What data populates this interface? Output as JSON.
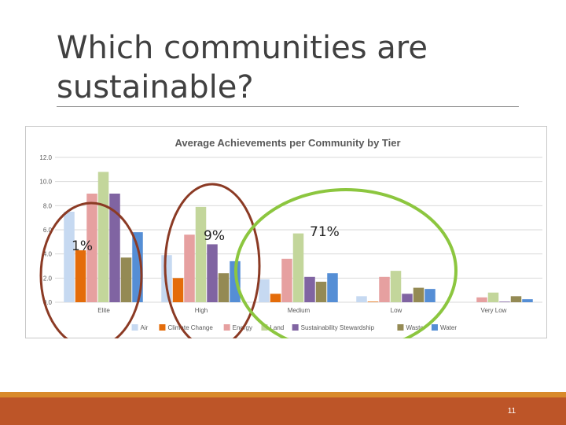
{
  "slide": {
    "title_line1": "Which communities are",
    "title_line2": "sustainable?",
    "page_number": "11"
  },
  "annotations": {
    "elite_pct": "1%",
    "high_pct": "9%",
    "medium_low_pct": "71%",
    "circle_colors": {
      "elite": "#8b3a24",
      "high": "#8b3a24",
      "medium_low": "#8cc63f"
    }
  },
  "chart_data": {
    "type": "bar",
    "title": "Average Achievements per Community by Tier",
    "categories": [
      "Elite",
      "High",
      "Medium",
      "Low",
      "Very Low"
    ],
    "yticks": [
      "0.0",
      "2.0",
      "4.0",
      "6.0",
      "8.0",
      "10.0",
      "12.0"
    ],
    "ylim": [
      0,
      12
    ],
    "grid": true,
    "legend_position": "bottom",
    "series": [
      {
        "name": "Air",
        "color": "#c6d9f1",
        "values": [
          7.5,
          3.9,
          1.9,
          0.5,
          0.0
        ]
      },
      {
        "name": "Climate Change",
        "color": "#e46c0a",
        "values": [
          4.3,
          2.0,
          0.7,
          0.05,
          0.0
        ]
      },
      {
        "name": "Energy",
        "color": "#e6a0a0",
        "values": [
          9.0,
          5.6,
          3.6,
          2.1,
          0.4
        ]
      },
      {
        "name": "Land",
        "color": "#c3d69b",
        "values": [
          10.8,
          7.9,
          5.7,
          2.6,
          0.8
        ]
      },
      {
        "name": "Sustainability Stewardship",
        "color": "#8064a2",
        "values": [
          9.0,
          4.8,
          2.1,
          0.7,
          0.05
        ]
      },
      {
        "name": "Waste",
        "color": "#948a54",
        "values": [
          3.7,
          2.4,
          1.7,
          1.2,
          0.5
        ]
      },
      {
        "name": "Water",
        "color": "#558ed5",
        "values": [
          5.8,
          3.4,
          2.4,
          1.1,
          0.25
        ]
      }
    ]
  }
}
